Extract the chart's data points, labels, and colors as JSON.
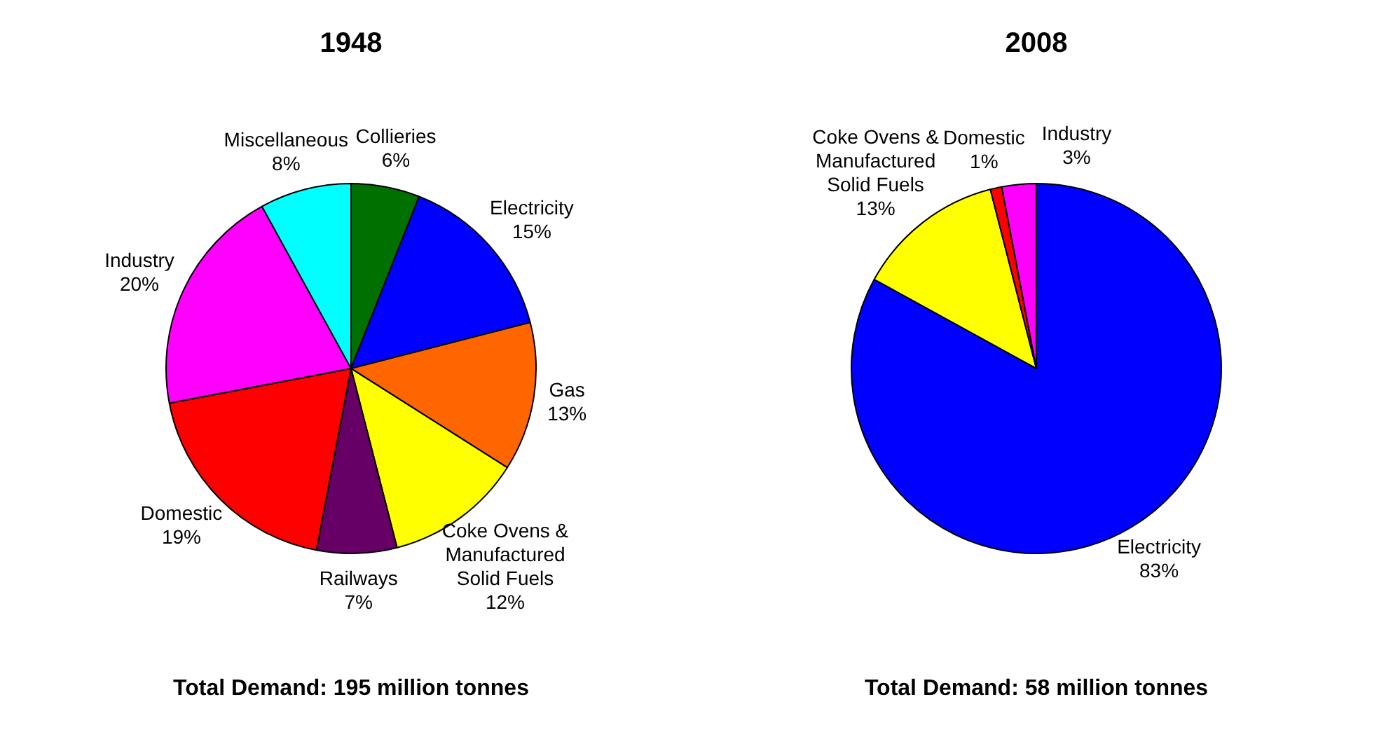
{
  "chart_data": [
    {
      "type": "pie",
      "title": "1948",
      "categories": [
        "Collieries",
        "Electricity",
        "Gas",
        "Coke Ovens & Manufactured Solid Fuels",
        "Railways",
        "Domestic",
        "Industry",
        "Miscellaneous"
      ],
      "values": [
        6,
        15,
        13,
        12,
        7,
        19,
        20,
        8
      ],
      "colors": [
        "#007000",
        "#0000ff",
        "#ff6600",
        "#ffff00",
        "#660066",
        "#ff0000",
        "#ff00ff",
        "#00ffff"
      ],
      "value_labels": [
        "6%",
        "15%",
        "13%",
        "12%",
        "7%",
        "19%",
        "20%",
        "8%"
      ],
      "annotations": [
        "Total Demand: 195 million tonnes"
      ],
      "legend": false
    },
    {
      "type": "pie",
      "title": "2008",
      "categories": [
        "Electricity",
        "Coke Ovens & Manufactured Solid Fuels",
        "Domestic",
        "Industry"
      ],
      "values": [
        83,
        13,
        1,
        3
      ],
      "colors": [
        "#0000ff",
        "#ffff00",
        "#ff0000",
        "#ff00ff"
      ],
      "value_labels": [
        "83%",
        "13%",
        "1%",
        "3%"
      ],
      "annotations": [
        "Total Demand: 58 million tonnes"
      ],
      "legend": false
    }
  ]
}
